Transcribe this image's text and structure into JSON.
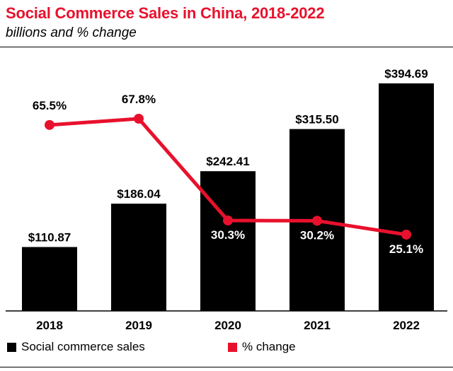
{
  "chart_data": {
    "type": "bar",
    "title": "Social Commerce Sales in China, 2018-2022",
    "subtitle": "billions and % change",
    "categories": [
      "2018",
      "2019",
      "2020",
      "2021",
      "2022"
    ],
    "series": [
      {
        "name": "Social commerce sales",
        "type": "bar",
        "values": [
          110.87,
          186.04,
          242.41,
          315.5,
          394.69
        ],
        "labels": [
          "$110.87",
          "$186.04",
          "$242.41",
          "$315.50",
          "$394.69"
        ],
        "color": "#000000"
      },
      {
        "name": "% change",
        "type": "line",
        "values": [
          65.5,
          67.8,
          30.3,
          30.2,
          25.1
        ],
        "labels": [
          "65.5%",
          "67.8%",
          "30.3%",
          "30.2%",
          "25.1%"
        ],
        "color": "#e8112d"
      }
    ],
    "ylim": [
      0,
      394.69
    ],
    "pct_range": [
      25.1,
      67.8
    ],
    "xlabel": "",
    "ylabel": "",
    "grid": false,
    "legend": "bottom"
  },
  "colors": {
    "accent": "#e8112d",
    "bar": "#000000"
  }
}
